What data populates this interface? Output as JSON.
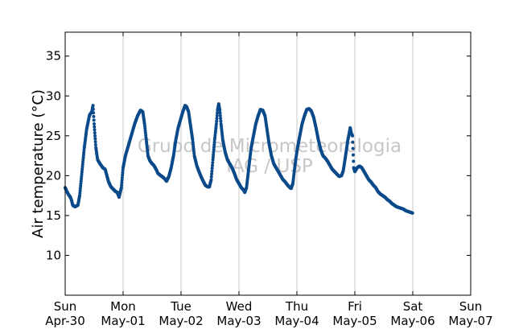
{
  "chart_data": {
    "type": "scatter",
    "ylabel": "Air temperature (°C)",
    "xlabel": "",
    "ylim": [
      5,
      38
    ],
    "xlim": [
      0,
      7
    ],
    "x_unit": "days since Sun Apr-30 00:00",
    "grid": "vertical lines at day boundaries",
    "marker_color": "#0b4a8a",
    "yticks": [
      10,
      15,
      20,
      25,
      30,
      35
    ],
    "xticks": [
      {
        "x": 0,
        "day": "Sun",
        "date": "Apr-30"
      },
      {
        "x": 1,
        "day": "Mon",
        "date": "May-01"
      },
      {
        "x": 2,
        "day": "Tue",
        "date": "May-02"
      },
      {
        "x": 3,
        "day": "Wed",
        "date": "May-03"
      },
      {
        "x": 4,
        "day": "Thu",
        "date": "May-04"
      },
      {
        "x": 5,
        "day": "Fri",
        "date": "May-05"
      },
      {
        "x": 6,
        "day": "Sat",
        "date": "May-06"
      },
      {
        "x": 7,
        "day": "Sun",
        "date": "May-07"
      }
    ],
    "watermark": [
      "Grupo de Micrometeorologia",
      "IAG / USP"
    ],
    "series": [
      {
        "values": [
          [
            0.0,
            18.5
          ],
          [
            0.03,
            18.0
          ],
          [
            0.06,
            17.6
          ],
          [
            0.09,
            17.3
          ],
          [
            0.11,
            16.9
          ],
          [
            0.13,
            16.3
          ],
          [
            0.17,
            16.1
          ],
          [
            0.22,
            16.3
          ],
          [
            0.25,
            17.5
          ],
          [
            0.29,
            20.5
          ],
          [
            0.33,
            23.5
          ],
          [
            0.37,
            25.8
          ],
          [
            0.42,
            27.6
          ],
          [
            0.46,
            28.0
          ],
          [
            0.48,
            28.8
          ],
          [
            0.5,
            26.5
          ],
          [
            0.53,
            23.5
          ],
          [
            0.56,
            22.0
          ],
          [
            0.6,
            21.5
          ],
          [
            0.65,
            21.0
          ],
          [
            0.69,
            20.8
          ],
          [
            0.72,
            20.0
          ],
          [
            0.75,
            19.2
          ],
          [
            0.79,
            18.6
          ],
          [
            0.83,
            18.3
          ],
          [
            0.87,
            18.0
          ],
          [
            0.9,
            17.9
          ],
          [
            0.93,
            17.3
          ],
          [
            0.97,
            18.5
          ],
          [
            1.0,
            21.0
          ],
          [
            1.04,
            22.5
          ],
          [
            1.08,
            23.5
          ],
          [
            1.12,
            24.5
          ],
          [
            1.16,
            25.5
          ],
          [
            1.2,
            26.5
          ],
          [
            1.25,
            27.5
          ],
          [
            1.3,
            28.2
          ],
          [
            1.34,
            28.0
          ],
          [
            1.37,
            26.5
          ],
          [
            1.4,
            24.5
          ],
          [
            1.43,
            22.5
          ],
          [
            1.46,
            21.9
          ],
          [
            1.5,
            21.5
          ],
          [
            1.53,
            21.3
          ],
          [
            1.57,
            20.8
          ],
          [
            1.6,
            20.3
          ],
          [
            1.65,
            20.0
          ],
          [
            1.69,
            19.8
          ],
          [
            1.72,
            19.6
          ],
          [
            1.75,
            19.3
          ],
          [
            1.79,
            19.9
          ],
          [
            1.83,
            21.0
          ],
          [
            1.87,
            22.5
          ],
          [
            1.91,
            24.5
          ],
          [
            1.95,
            26.0
          ],
          [
            1.99,
            27.0
          ],
          [
            2.03,
            28.0
          ],
          [
            2.07,
            28.8
          ],
          [
            2.1,
            28.6
          ],
          [
            2.13,
            28.0
          ],
          [
            2.16,
            26.5
          ],
          [
            2.2,
            24.5
          ],
          [
            2.23,
            22.5
          ],
          [
            2.27,
            21.3
          ],
          [
            2.31,
            20.5
          ],
          [
            2.35,
            19.8
          ],
          [
            2.39,
            19.2
          ],
          [
            2.42,
            18.8
          ],
          [
            2.46,
            18.6
          ],
          [
            2.49,
            18.6
          ],
          [
            2.52,
            19.5
          ],
          [
            2.55,
            22.0
          ],
          [
            2.58,
            24.5
          ],
          [
            2.61,
            26.5
          ],
          [
            2.63,
            28.2
          ],
          [
            2.65,
            29.0
          ],
          [
            2.67,
            28.2
          ],
          [
            2.69,
            26.5
          ],
          [
            2.72,
            24.5
          ],
          [
            2.76,
            23.0
          ],
          [
            2.8,
            22.0
          ],
          [
            2.84,
            21.5
          ],
          [
            2.88,
            21.0
          ],
          [
            2.92,
            20.3
          ],
          [
            2.96,
            19.5
          ],
          [
            3.0,
            19.0
          ],
          [
            3.04,
            18.5
          ],
          [
            3.08,
            18.2
          ],
          [
            3.1,
            17.9
          ],
          [
            3.13,
            18.5
          ],
          [
            3.17,
            21.0
          ],
          [
            3.21,
            23.5
          ],
          [
            3.25,
            25.0
          ],
          [
            3.29,
            26.5
          ],
          [
            3.33,
            27.5
          ],
          [
            3.37,
            28.3
          ],
          [
            3.41,
            28.2
          ],
          [
            3.45,
            27.5
          ],
          [
            3.48,
            26.0
          ],
          [
            3.52,
            24.0
          ],
          [
            3.56,
            22.5
          ],
          [
            3.6,
            21.5
          ],
          [
            3.64,
            21.0
          ],
          [
            3.68,
            20.5
          ],
          [
            3.72,
            20.0
          ],
          [
            3.76,
            19.5
          ],
          [
            3.8,
            19.2
          ],
          [
            3.84,
            18.8
          ],
          [
            3.88,
            18.5
          ],
          [
            3.9,
            18.4
          ],
          [
            3.93,
            19.0
          ],
          [
            3.97,
            21.5
          ],
          [
            4.01,
            23.5
          ],
          [
            4.05,
            25.0
          ],
          [
            4.09,
            26.5
          ],
          [
            4.13,
            27.5
          ],
          [
            4.17,
            28.3
          ],
          [
            4.21,
            28.4
          ],
          [
            4.25,
            28.1
          ],
          [
            4.29,
            27.3
          ],
          [
            4.33,
            26.0
          ],
          [
            4.37,
            24.5
          ],
          [
            4.41,
            23.3
          ],
          [
            4.45,
            22.5
          ],
          [
            4.49,
            22.2
          ],
          [
            4.53,
            21.8
          ],
          [
            4.57,
            21.3
          ],
          [
            4.61,
            20.8
          ],
          [
            4.65,
            20.5
          ],
          [
            4.69,
            20.2
          ],
          [
            4.73,
            19.9
          ],
          [
            4.77,
            20.0
          ],
          [
            4.8,
            20.6
          ],
          [
            4.83,
            22.0
          ],
          [
            4.86,
            23.5
          ],
          [
            4.88,
            24.5
          ],
          [
            4.9,
            25.2
          ],
          [
            4.92,
            26.0
          ],
          [
            4.94,
            25.3
          ],
          [
            4.96,
            25.0
          ],
          [
            4.98,
            21.0
          ],
          [
            5.0,
            20.5
          ],
          [
            5.04,
            21.0
          ],
          [
            5.08,
            21.2
          ],
          [
            5.12,
            21.0
          ],
          [
            5.16,
            20.5
          ],
          [
            5.2,
            20.0
          ],
          [
            5.24,
            19.5
          ],
          [
            5.28,
            19.2
          ],
          [
            5.32,
            18.8
          ],
          [
            5.36,
            18.5
          ],
          [
            5.4,
            18.0
          ],
          [
            5.44,
            17.7
          ],
          [
            5.48,
            17.5
          ],
          [
            5.52,
            17.3
          ],
          [
            5.56,
            17.0
          ],
          [
            5.6,
            16.8
          ],
          [
            5.64,
            16.5
          ],
          [
            5.68,
            16.3
          ],
          [
            5.72,
            16.1
          ],
          [
            5.76,
            16.0
          ],
          [
            5.8,
            15.9
          ],
          [
            5.84,
            15.8
          ],
          [
            5.88,
            15.6
          ],
          [
            5.92,
            15.5
          ],
          [
            5.96,
            15.4
          ],
          [
            6.0,
            15.3
          ]
        ]
      }
    ]
  }
}
